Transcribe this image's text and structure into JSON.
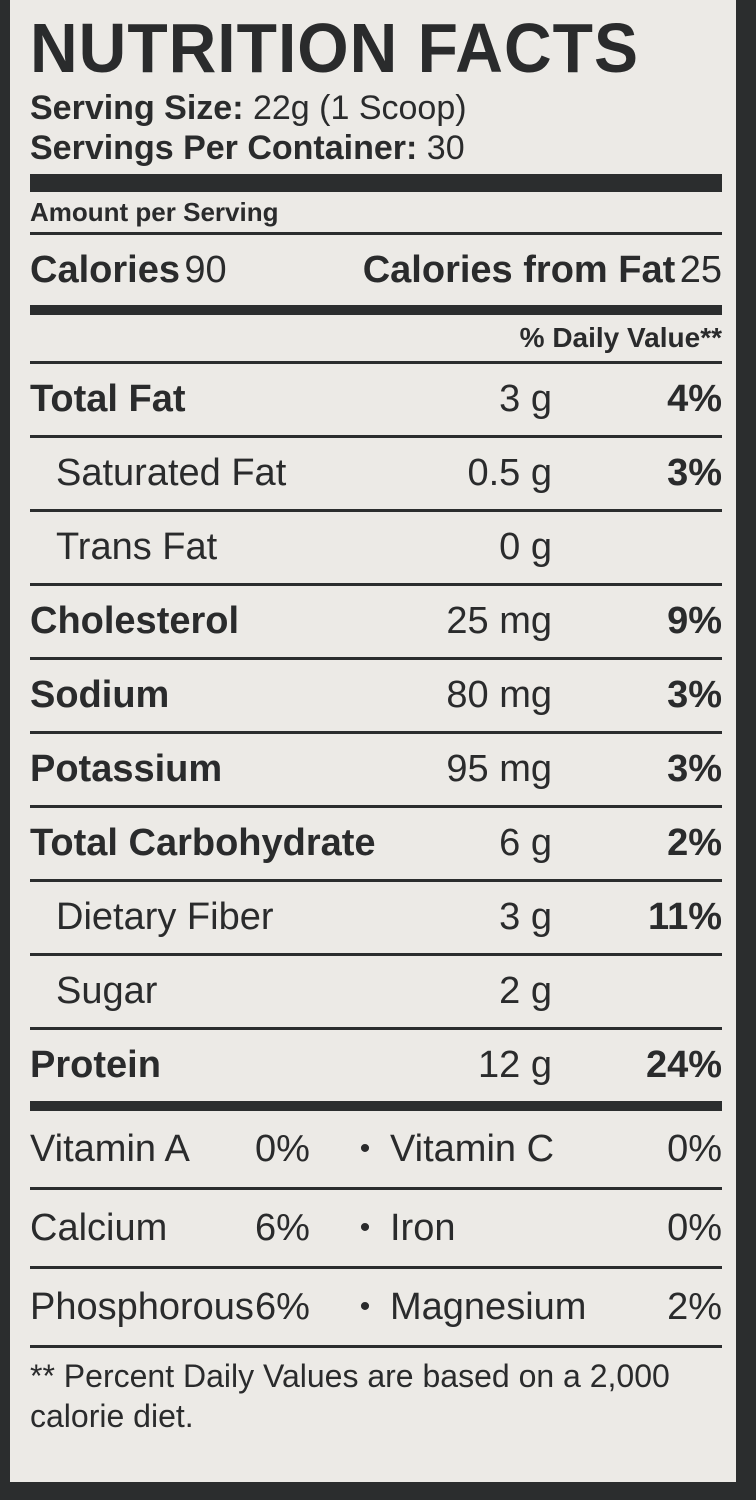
{
  "label": {
    "title": "NUTRITION FACTS",
    "serving_size_label": "Serving Size:",
    "serving_size_value": "22g (1 Scoop)",
    "servings_per_container_label": "Servings Per Container:",
    "servings_per_container_value": "30",
    "amount_per_serving": "Amount per Serving",
    "calories_label": "Calories",
    "calories_value": "90",
    "calories_from_fat_label": "Calories from Fat",
    "calories_from_fat_value": "25",
    "daily_value_header": "% Daily Value**"
  },
  "nutrients": [
    {
      "name": "Total Fat",
      "amount": "3 g",
      "dv": "4%",
      "bold": true,
      "indent": false
    },
    {
      "name": "Saturated Fat",
      "amount": "0.5 g",
      "dv": "3%",
      "bold": false,
      "indent": true
    },
    {
      "name": "Trans Fat",
      "amount": "0 g",
      "dv": "",
      "bold": false,
      "indent": true
    },
    {
      "name": "Cholesterol",
      "amount": "25 mg",
      "dv": "9%",
      "bold": true,
      "indent": false
    },
    {
      "name": "Sodium",
      "amount": "80 mg",
      "dv": "3%",
      "bold": true,
      "indent": false
    },
    {
      "name": "Potassium",
      "amount": "95 mg",
      "dv": "3%",
      "bold": true,
      "indent": false
    },
    {
      "name": "Total Carbohydrate",
      "amount": "6 g",
      "dv": "2%",
      "bold": true,
      "indent": false
    },
    {
      "name": "Dietary Fiber",
      "amount": "3 g",
      "dv": "11%",
      "bold": false,
      "indent": true
    },
    {
      "name": "Sugar",
      "amount": "2 g",
      "dv": "",
      "bold": false,
      "indent": true
    },
    {
      "name": "Protein",
      "amount": "12 g",
      "dv": "24%",
      "bold": true,
      "indent": false
    }
  ],
  "vitamins": [
    {
      "left_name": "Vitamin A",
      "left_pct": "0%",
      "sep": "•",
      "right_name": "Vitamin C",
      "right_pct": "0%"
    },
    {
      "left_name": "Calcium",
      "left_pct": "6%",
      "sep": "•",
      "right_name": "Iron",
      "right_pct": "0%"
    },
    {
      "left_name": "Phosphorous",
      "left_pct": "6%",
      "sep": "•",
      "right_name": "Magnesium",
      "right_pct": "2%"
    }
  ],
  "footnote": "** Percent Daily Values are based on a 2,000 calorie diet."
}
